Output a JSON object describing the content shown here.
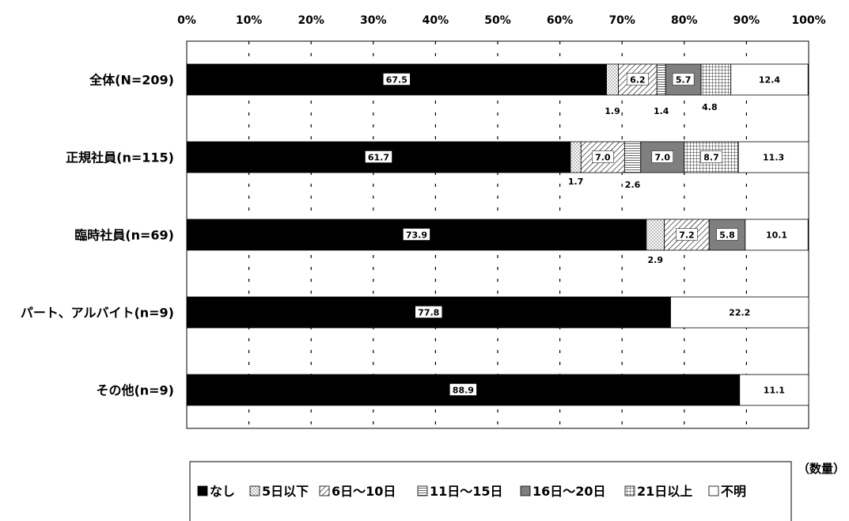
{
  "chart_data": {
    "type": "bar",
    "orientation": "horizontal",
    "stacked": true,
    "title": "",
    "xlabel": "",
    "ylabel": "",
    "xlim": [
      0,
      100
    ],
    "x_ticks": [
      "0%",
      "10%",
      "20%",
      "30%",
      "40%",
      "50%",
      "60%",
      "70%",
      "80%",
      "90%",
      "100%"
    ],
    "categories": [
      "全体(N=209)",
      "正規社員(n=115)",
      "臨時社員(n=69)",
      "パート、アルバイト(n=9)",
      "その他(n=9)"
    ],
    "series": [
      {
        "name": "なし",
        "fill": "solid-black",
        "values": [
          67.5,
          61.7,
          73.9,
          77.8,
          88.9
        ]
      },
      {
        "name": "5日以下",
        "fill": "dotted",
        "values": [
          1.9,
          1.7,
          2.9,
          0,
          0
        ]
      },
      {
        "name": "6日～10日",
        "fill": "diagonal-hatch",
        "values": [
          6.2,
          7.0,
          7.2,
          0,
          0
        ]
      },
      {
        "name": "11日～15日",
        "fill": "horizontal-lines",
        "values": [
          1.4,
          2.6,
          0,
          0,
          0
        ]
      },
      {
        "name": "16日～20日",
        "fill": "dark-gray",
        "values": [
          5.7,
          7.0,
          5.8,
          0,
          0
        ]
      },
      {
        "name": "21日以上",
        "fill": "grid",
        "values": [
          4.8,
          8.7,
          0,
          0,
          0
        ]
      },
      {
        "name": "不明",
        "fill": "white",
        "values": [
          12.4,
          11.3,
          10.1,
          22.2,
          11.1
        ]
      }
    ],
    "grid": "vertical-dashed",
    "legend_position": "bottom",
    "note": "（数量）"
  },
  "colors": {
    "black": "#000000",
    "gray": "#808080",
    "white": "#ffffff"
  }
}
